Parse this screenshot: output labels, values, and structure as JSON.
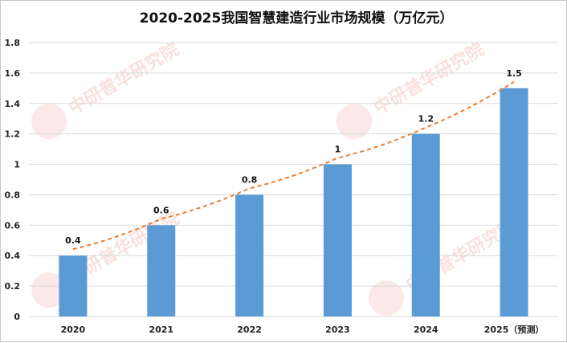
{
  "chart_data": {
    "type": "bar",
    "title": "2020-2025我国智慧建造行业市场规模（万亿元）",
    "categories": [
      "2020",
      "2021",
      "2022",
      "2023",
      "2024",
      "2025（预测）"
    ],
    "values": [
      0.4,
      0.6,
      0.8,
      1,
      1.2,
      1.5
    ],
    "data_labels": [
      "0.4",
      "0.6",
      "0.8",
      "1",
      "1.2",
      "1.5"
    ],
    "ylim": [
      0,
      1.8
    ],
    "yticks": [
      "0",
      "0.2",
      "0.4",
      "0.6",
      "0.8",
      "1",
      "1.2",
      "1.4",
      "1.6",
      "1.8"
    ],
    "grid": true,
    "trendline": "dashed-curve",
    "legend": "none"
  },
  "colors": {
    "bar": "#5b9bd5",
    "trend": "#ed7d31",
    "grid": "#d9d9d9"
  },
  "watermark": {
    "text": "中研普华研究院"
  }
}
